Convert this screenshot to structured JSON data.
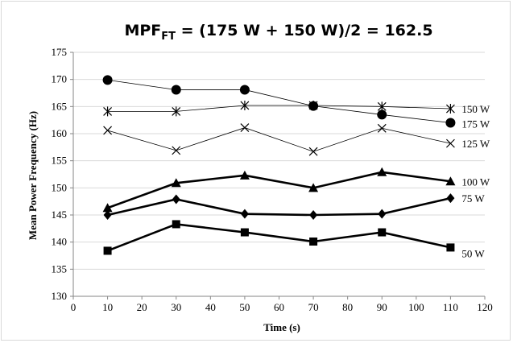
{
  "chart_data": {
    "type": "line",
    "title": {
      "prefix": "MPF",
      "subscript": "FT",
      "suffix": " = (175 W + 150 W)/2 = 162.5"
    },
    "xlabel": "Time (s)",
    "ylabel": "Mean Power Frequency (Hz)",
    "xlim": [
      0,
      120
    ],
    "ylim": [
      130,
      175
    ],
    "x_ticks": [
      "0",
      "10",
      "20",
      "30",
      "40",
      "50",
      "60",
      "70",
      "80",
      "90",
      "100",
      "110",
      "120"
    ],
    "y_ticks": [
      "130",
      "135",
      "140",
      "145",
      "150",
      "155",
      "160",
      "165",
      "170",
      "175"
    ],
    "grid": "horizontal",
    "legend": "none",
    "x": [
      10,
      30,
      50,
      70,
      90,
      110
    ],
    "series": [
      {
        "name": "150 W",
        "marker": "asterisk",
        "weight": "thin",
        "values": [
          164.1,
          164.1,
          165.2,
          165.2,
          165.0,
          164.6
        ]
      },
      {
        "name": "175 W",
        "marker": "circle",
        "weight": "thin",
        "values": [
          169.9,
          168.1,
          168.1,
          165.1,
          163.5,
          162.0
        ]
      },
      {
        "name": "125 W",
        "marker": "x",
        "weight": "thin",
        "values": [
          160.6,
          156.9,
          161.1,
          156.7,
          161.0,
          158.2
        ]
      },
      {
        "name": "100 W",
        "marker": "triangle",
        "weight": "thick",
        "values": [
          146.3,
          150.9,
          152.3,
          150.0,
          152.9,
          151.2
        ]
      },
      {
        "name": "75 W",
        "marker": "diamond",
        "weight": "thick",
        "values": [
          145.0,
          147.9,
          145.2,
          145.0,
          145.2,
          148.1
        ]
      },
      {
        "name": "50 W",
        "marker": "square",
        "weight": "thick",
        "values": [
          138.4,
          143.3,
          141.8,
          140.1,
          141.8,
          139.0
        ]
      }
    ]
  }
}
